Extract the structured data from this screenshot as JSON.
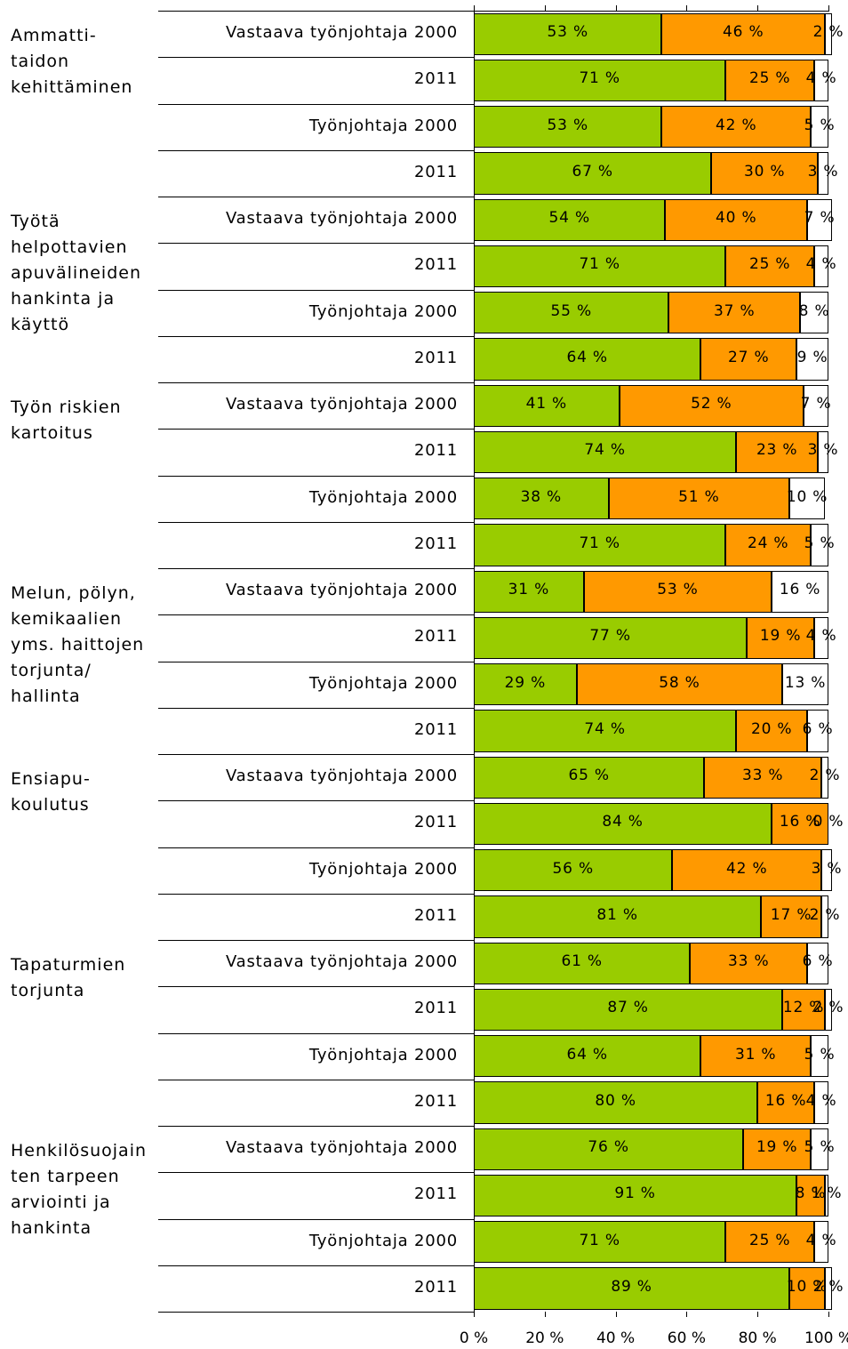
{
  "chart_data": {
    "type": "stacked-bar",
    "orientation": "horizontal",
    "groups": [
      {
        "label": "Ammatti-\ntaidon\nkehittäminen",
        "categories": [
          "Vastaava työnjohtaja 2000",
          "2011",
          "Työnjohtaja 2000",
          "2011"
        ]
      },
      {
        "label": "Työtä\nhelpottavien\napuvälineiden\nhankinta ja\nkäyttö",
        "categories": [
          "Vastaava työnjohtaja 2000",
          "2011",
          "Työnjohtaja 2000",
          "2011"
        ]
      },
      {
        "label": "Työn riskien\nkartoitus",
        "categories": [
          "Vastaava työnjohtaja 2000",
          "2011",
          "Työnjohtaja 2000",
          "2011"
        ]
      },
      {
        "label": "Melun, pölyn,\nkemikaalien\nyms. haittojen\ntorjunta/\nhallinta",
        "categories": [
          "Vastaava työnjohtaja 2000",
          "2011",
          "Työnjohtaja 2000",
          "2011"
        ]
      },
      {
        "label": "Ensiapu-\nkoulutus",
        "categories": [
          "Vastaava työnjohtaja 2000",
          "2011",
          "Työnjohtaja 2000",
          "2011"
        ]
      },
      {
        "label": "Tapaturmien\ntorjunta",
        "categories": [
          "Vastaava työnjohtaja 2000",
          "2011",
          "Työnjohtaja 2000",
          "2011"
        ]
      },
      {
        "label": "Henkilösuojain\nten tarpeen\narviointi ja\nhankinta",
        "categories": [
          "Vastaava työnjohtaja 2000",
          "2011",
          "Työnjohtaja 2000",
          "2011"
        ]
      }
    ],
    "series": [
      {
        "color": "#99cc00",
        "values": [
          53,
          71,
          53,
          67,
          54,
          71,
          55,
          64,
          41,
          74,
          38,
          71,
          31,
          77,
          29,
          74,
          65,
          84,
          56,
          81,
          61,
          87,
          64,
          80,
          76,
          91,
          71,
          89
        ],
        "value_labels": [
          "53 %",
          "71 %",
          "53 %",
          "67 %",
          "54 %",
          "71 %",
          "55 %",
          "64 %",
          "41 %",
          "74 %",
          "38 %",
          "71 %",
          "31 %",
          "77 %",
          "29 %",
          "74 %",
          "65 %",
          "84 %",
          "56 %",
          "81 %",
          "61 %",
          "87 %",
          "64 %",
          "80 %",
          "76 %",
          "91 %",
          "71 %",
          "89 %"
        ]
      },
      {
        "color": "#ff9900",
        "values": [
          46,
          25,
          42,
          30,
          40,
          25,
          37,
          27,
          52,
          23,
          51,
          24,
          53,
          19,
          58,
          20,
          33,
          16,
          42,
          17,
          33,
          12,
          31,
          16,
          19,
          8,
          25,
          10
        ],
        "value_labels": [
          "46 %",
          "25 %",
          "42 %",
          "30 %",
          "40 %",
          "25 %",
          "37 %",
          "27 %",
          "52 %",
          "23 %",
          "51 %",
          "24 %",
          "53 %",
          "19 %",
          "58 %",
          "20 %",
          "33 %",
          "16 %",
          "42 %",
          "17 %",
          "33 %",
          "12 %",
          "31 %",
          "16 %",
          "19 %",
          "8 %",
          "25 %",
          "10 %"
        ]
      },
      {
        "color": "#ffffff",
        "values": [
          2,
          4,
          5,
          3,
          7,
          4,
          8,
          9,
          7,
          3,
          10,
          5,
          16,
          4,
          13,
          6,
          2,
          0,
          3,
          2,
          6,
          2,
          5,
          4,
          5,
          1,
          4,
          2
        ],
        "value_labels": [
          "2 %",
          "4 %",
          "5 %",
          "3 %",
          "7 %",
          "4 %",
          "8 %",
          "9 %",
          "7 %",
          "3 %",
          "10 %",
          "5 %",
          "16 %",
          "4 %",
          "13 %",
          "6 %",
          "2 %",
          "0 %",
          "3 %",
          "2 %",
          "6 %",
          "2 %",
          "5 %",
          "4 %",
          "5 %",
          "1 %",
          "4 %",
          "2 %"
        ]
      }
    ],
    "xlim": [
      0,
      100
    ],
    "xticks": [
      {
        "value": 0,
        "label": "0 %"
      },
      {
        "value": 20,
        "label": "20 %"
      },
      {
        "value": 40,
        "label": "40 %"
      },
      {
        "value": 60,
        "label": "60 %"
      },
      {
        "value": 80,
        "label": "80 %"
      },
      {
        "value": 100,
        "label": "100 %"
      }
    ]
  }
}
